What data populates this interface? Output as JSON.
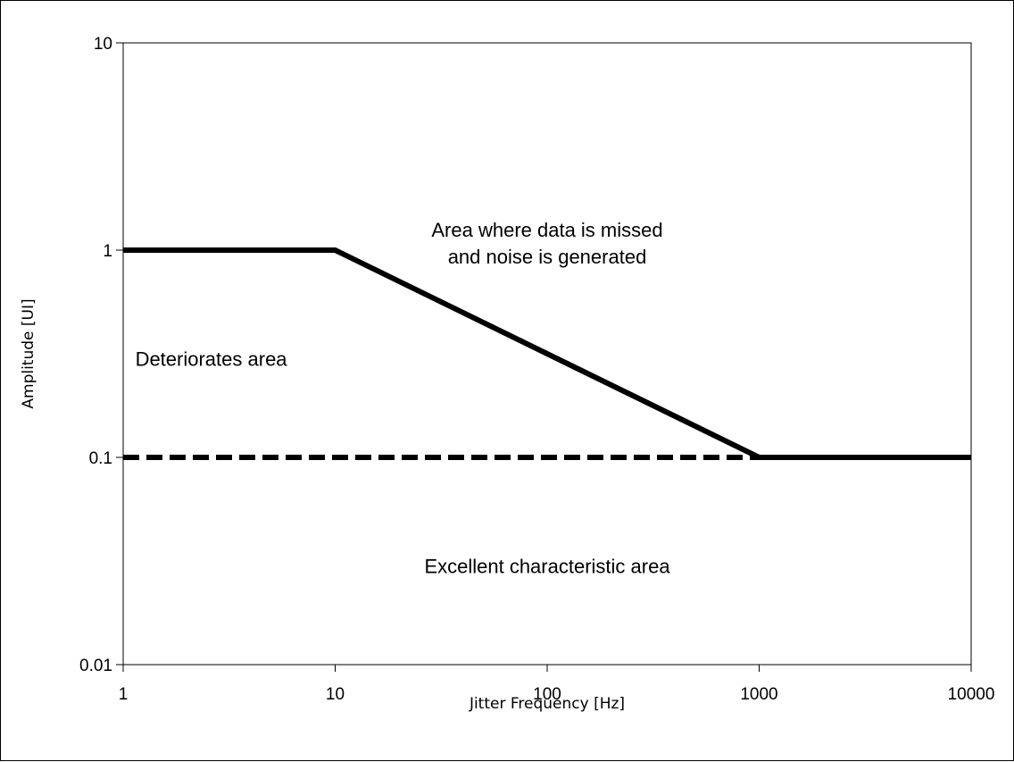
{
  "chart_data": {
    "type": "line",
    "x_scale": "log",
    "y_scale": "log",
    "xlim": [
      1,
      10000
    ],
    "ylim": [
      0.01,
      10
    ],
    "xlabel": "Jitter Frequency  [Hz]",
    "ylabel": "Amplitude  [UI]",
    "x_ticks": [
      "1",
      "10",
      "100",
      "1000",
      "10000"
    ],
    "y_ticks": [
      "0.01",
      "0.1",
      "1",
      "10"
    ],
    "grid": false,
    "series": [
      {
        "style": "solid",
        "color": "#000000",
        "x": [
          1,
          10,
          1000,
          10000
        ],
        "y": [
          1,
          1,
          0.1,
          0.1
        ]
      },
      {
        "style": "dashed",
        "color": "#000000",
        "x": [
          1,
          10000
        ],
        "y": [
          0.1,
          0.1
        ]
      }
    ],
    "annotations": [
      {
        "lines": [
          "Area where data is missed",
          "and noise is generated"
        ],
        "x": 100,
        "y": 1
      },
      {
        "lines": [
          "Deteriorates area"
        ],
        "x": 2.6,
        "y": 0.3
      },
      {
        "lines": [
          "Excellent characteristic area"
        ],
        "x": 100,
        "y": 0.03
      }
    ]
  }
}
